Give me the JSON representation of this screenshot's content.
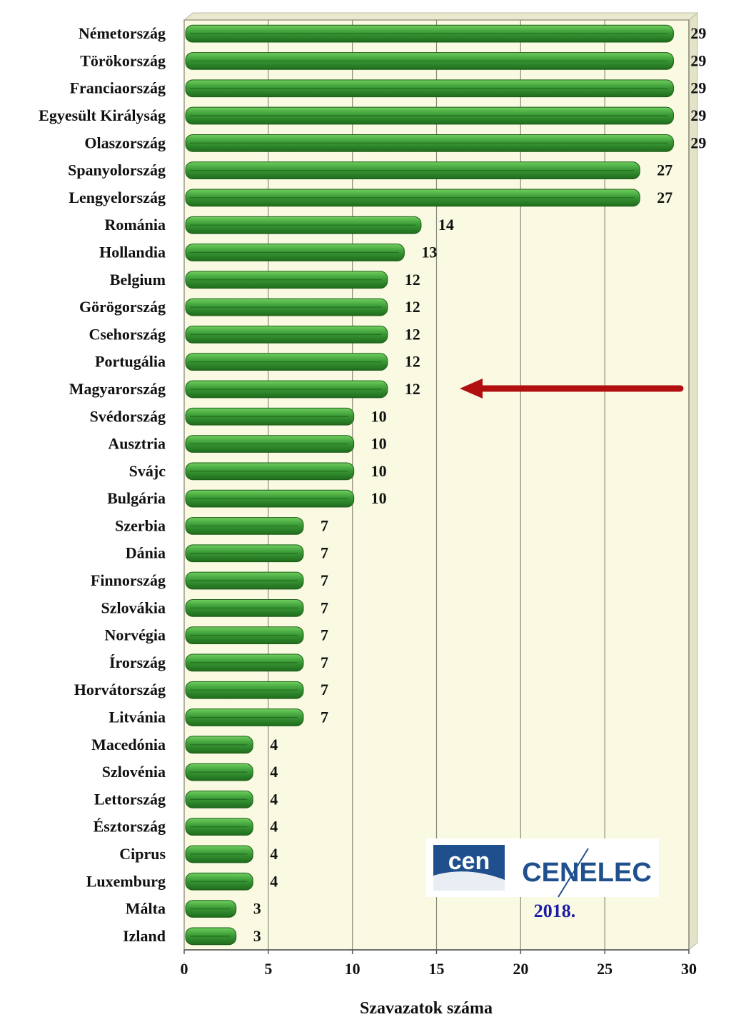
{
  "chart_data": {
    "type": "bar",
    "orientation": "horizontal",
    "categories": [
      "Németország",
      "Törökország",
      "Franciaország",
      "Egyesült Királyság",
      "Olaszország",
      "Spanyolország",
      "Lengyelország",
      "Románia",
      "Hollandia",
      "Belgium",
      "Görögország",
      "Csehország",
      "Portugália",
      "Magyarország",
      "Svédország",
      "Ausztria",
      "Svájc",
      "Bulgária",
      "Szerbia",
      "Dánia",
      "Finnország",
      "Szlovákia",
      "Norvégia",
      "Írország",
      "Horvátország",
      "Litvánia",
      "Macedónia",
      "Szlovénia",
      "Lettország",
      "Észtország",
      "Ciprus",
      "Luxemburg",
      "Málta",
      "Izland"
    ],
    "values": [
      29,
      29,
      29,
      29,
      29,
      27,
      27,
      14,
      13,
      12,
      12,
      12,
      12,
      12,
      10,
      10,
      10,
      10,
      7,
      7,
      7,
      7,
      7,
      7,
      7,
      7,
      4,
      4,
      4,
      4,
      4,
      4,
      3,
      3
    ],
    "value_labels": [
      "29",
      "29",
      "29",
      "29",
      "29",
      "27",
      "27",
      "14",
      "13",
      "12",
      "12",
      "12",
      "12",
      "12",
      "10",
      "10",
      "10",
      "10",
      "7",
      "7",
      "7",
      "7",
      "7",
      "7",
      "7",
      "7",
      "4",
      "4",
      "4",
      "4",
      "4",
      "4",
      "3",
      "3"
    ],
    "xlabel": "Szavazatok száma",
    "xlim": [
      0,
      30
    ],
    "xticks": [
      "0",
      "5",
      "10",
      "15",
      "20",
      "25",
      "30"
    ],
    "grid": true,
    "highlight": {
      "category": "Magyarország",
      "marker": "arrow"
    },
    "colors": {
      "bar": "#3a9a36",
      "plot_bg": "#fafae2",
      "arrow": "#b01010",
      "grid": "#8a8a7a"
    }
  },
  "logo": {
    "cen": "cen",
    "cenelec": "CENELEC",
    "year": "2018.",
    "colors": {
      "cen_bg": "#1f4f8c",
      "cenelec_text": "#1f4f8c",
      "year_text": "#1a1aa8"
    }
  }
}
